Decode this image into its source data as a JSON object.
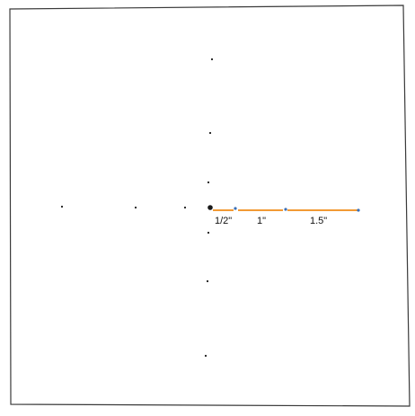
{
  "diagram": {
    "colors": {
      "frame": "#3a3a3a",
      "dot": "#1a1a1a",
      "segment": "#f29a35",
      "segment_end": "#3b6fb6"
    },
    "segments": [
      {
        "label": "1/2\""
      },
      {
        "label": "1\""
      },
      {
        "label": "1.5\""
      }
    ]
  }
}
